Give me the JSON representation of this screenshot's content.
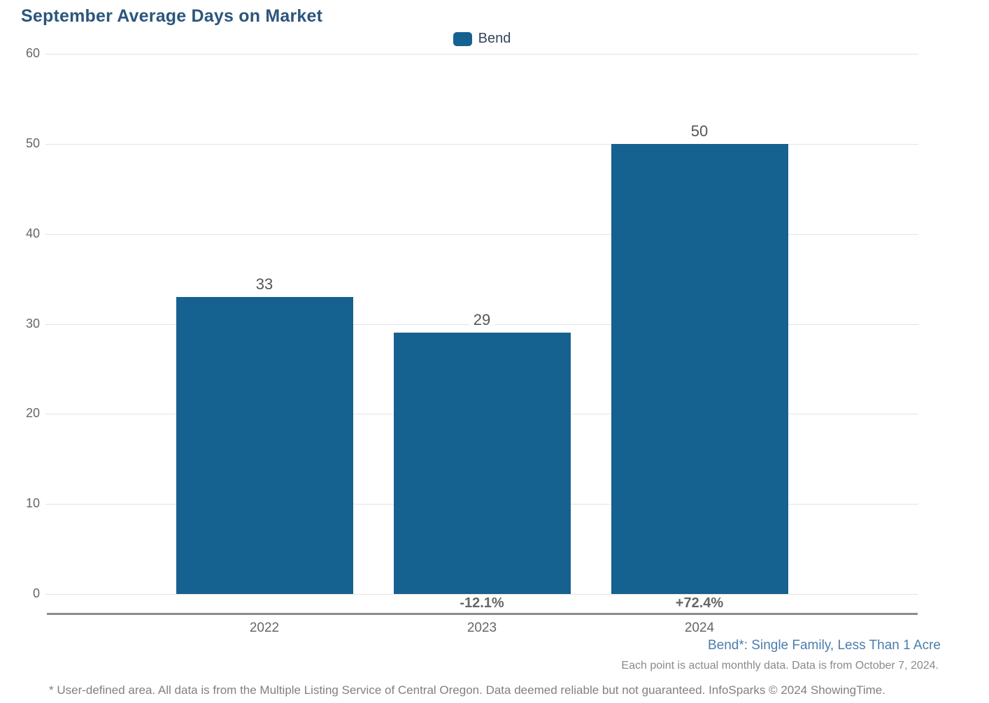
{
  "title": "September Average Days on Market",
  "legend": {
    "label": "Bend",
    "swatch_color": "#15618F"
  },
  "chart_data": {
    "type": "bar",
    "title": "September Average Days on Market",
    "series_name": "Bend",
    "categories": [
      "2022",
      "2023",
      "2024"
    ],
    "values": [
      33,
      29,
      50
    ],
    "pct_change_labels": [
      "",
      "-12.1%",
      "+72.4%"
    ],
    "xlabel": "",
    "ylabel": "",
    "ylim": [
      0,
      60
    ],
    "ytick_step": 10,
    "yticks": [
      0,
      10,
      20,
      30,
      40,
      50,
      60
    ],
    "grid": true,
    "legend_position": "top-center",
    "bar_color": "#15618F"
  },
  "footnotes": {
    "series_definition": "Bend*: Single Family, Less Than 1 Acre",
    "data_note": "Each point is actual monthly data. Data is from October 7, 2024.",
    "disclaimer": "* User-defined area. All data is from the Multiple Listing Service of Central Oregon. Data deemed reliable but not guaranteed. InfoSparks © 2024 ShowingTime."
  },
  "colors": {
    "title": "#2B567C",
    "bar": "#15618F",
    "gridline": "#e3e3e3",
    "axis_line": "#8c8c8c",
    "tick_text": "#666666",
    "value_text": "#555555",
    "footnote_blue": "#4C7DAD",
    "footnote_gray": "#8a8a8a"
  }
}
